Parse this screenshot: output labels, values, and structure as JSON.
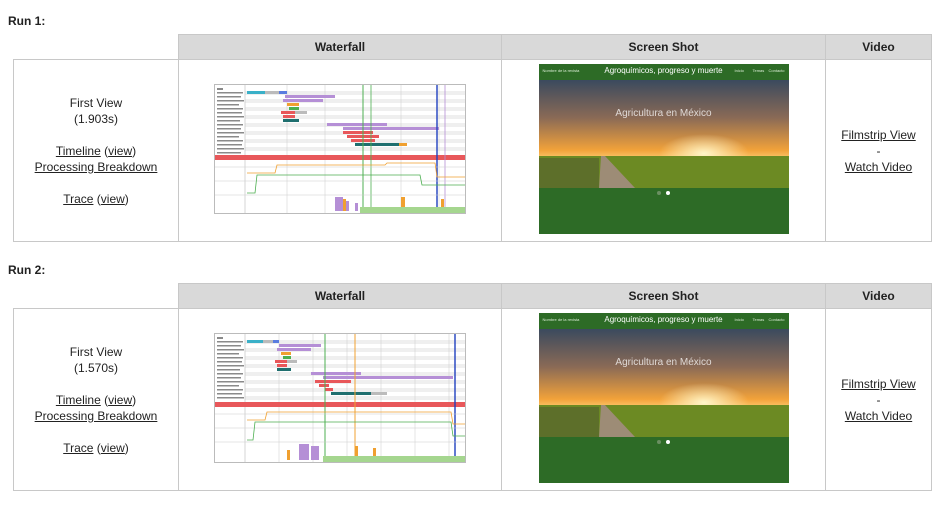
{
  "headers": {
    "waterfall": "Waterfall",
    "screenshot": "Screen Shot",
    "video": "Video"
  },
  "runs": [
    {
      "heading": "Run 1:",
      "view_label": "First View",
      "load_time": "(1.903s)",
      "timeline_label": "Timeline",
      "timeline_view": "view",
      "processing_label": "Processing Breakdown",
      "trace_label": "Trace",
      "trace_view": "view",
      "filmstrip_label": "Filmstrip View",
      "separator": "-",
      "watch_label": "Watch Video",
      "screenshot": {
        "site_title": "Agroquímicos, progreso y muerte",
        "hero_text": "Agricultura en México",
        "left_text": "Nombre de la revista",
        "nav": [
          "Inicio",
          "Temas",
          "Contacto"
        ]
      }
    },
    {
      "heading": "Run 2:",
      "view_label": "First View",
      "load_time": "(1.570s)",
      "timeline_label": "Timeline",
      "timeline_view": "view",
      "processing_label": "Processing Breakdown",
      "trace_label": "Trace",
      "trace_view": "view",
      "filmstrip_label": "Filmstrip View",
      "separator": "-",
      "watch_label": "Watch Video",
      "screenshot": {
        "site_title": "Agroquímicos, progreso y muerte",
        "hero_text": "Agricultura en México",
        "left_text": "Nombre de la revista",
        "nav": [
          "Inicio",
          "Temas",
          "Contacto"
        ]
      }
    }
  ],
  "colors": {
    "header_bg": "#d9d9d9",
    "site_green": "#2d6b26",
    "waterfall_red_bar": "#e8575a",
    "waterfall_purple": "#b58fd6",
    "waterfall_green": "#4caf50",
    "waterfall_orange": "#f0a030",
    "waterfall_blue": "#1f3fbf"
  }
}
